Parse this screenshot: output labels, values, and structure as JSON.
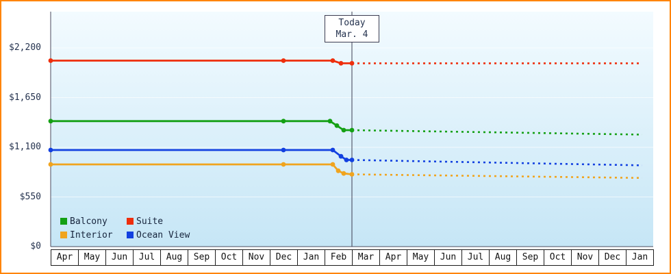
{
  "frame": {
    "border_color": "#ff8400",
    "background": "#ffffff"
  },
  "legend": {
    "order": [
      "Balcony",
      "Suite",
      "Interior",
      "Ocean View"
    ]
  },
  "chart_data": {
    "type": "line",
    "x_axis": {
      "months": [
        "Apr",
        "May",
        "Jun",
        "Jul",
        "Aug",
        "Sep",
        "Oct",
        "Nov",
        "Dec",
        "Jan",
        "Feb",
        "Mar",
        "Apr",
        "May",
        "Jun",
        "Jul",
        "Aug",
        "Sep",
        "Oct",
        "Nov",
        "Dec",
        "Jan"
      ]
    },
    "y_axis": {
      "ticks": [
        {
          "value": 0,
          "label": "$0"
        },
        {
          "value": 550,
          "label": "$550"
        },
        {
          "value": 1100,
          "label": "$1,100"
        },
        {
          "value": 1650,
          "label": "$1,650"
        },
        {
          "value": 2200,
          "label": "$2,200"
        }
      ]
    },
    "today": {
      "title": "Today",
      "date": "Mar. 4",
      "month_position": 11
    },
    "plot_colors": {
      "background_top": "#f3fbff",
      "background_bottom": "#c6e6f6"
    },
    "grid": true,
    "legend_position": "bottom-left",
    "series": [
      {
        "name": "Suite",
        "color": "#ee2e0c",
        "solid": [
          [
            0,
            2060
          ],
          [
            8.5,
            2060
          ],
          [
            10.3,
            2060
          ],
          [
            10.6,
            2030
          ],
          [
            11,
            2030
          ]
        ],
        "forecast": [
          [
            11,
            2030
          ],
          [
            21.6,
            2030
          ]
        ]
      },
      {
        "name": "Balcony",
        "color": "#14a014",
        "solid": [
          [
            0,
            1390
          ],
          [
            8.5,
            1390
          ],
          [
            10.2,
            1390
          ],
          [
            10.45,
            1340
          ],
          [
            10.7,
            1290
          ],
          [
            11,
            1290
          ]
        ],
        "forecast": [
          [
            11,
            1290
          ],
          [
            21.6,
            1240
          ]
        ]
      },
      {
        "name": "Ocean View",
        "color": "#1240e0",
        "solid": [
          [
            0,
            1070
          ],
          [
            8.5,
            1070
          ],
          [
            10.3,
            1070
          ],
          [
            10.6,
            1000
          ],
          [
            10.8,
            960
          ],
          [
            11,
            960
          ]
        ],
        "forecast": [
          [
            11,
            960
          ],
          [
            21.6,
            900
          ]
        ]
      },
      {
        "name": "Interior",
        "color": "#f0a41e",
        "solid": [
          [
            0,
            910
          ],
          [
            8.5,
            910
          ],
          [
            10.3,
            910
          ],
          [
            10.5,
            840
          ],
          [
            10.7,
            810
          ],
          [
            11,
            800
          ]
        ],
        "forecast": [
          [
            11,
            800
          ],
          [
            21.6,
            760
          ]
        ]
      }
    ]
  }
}
